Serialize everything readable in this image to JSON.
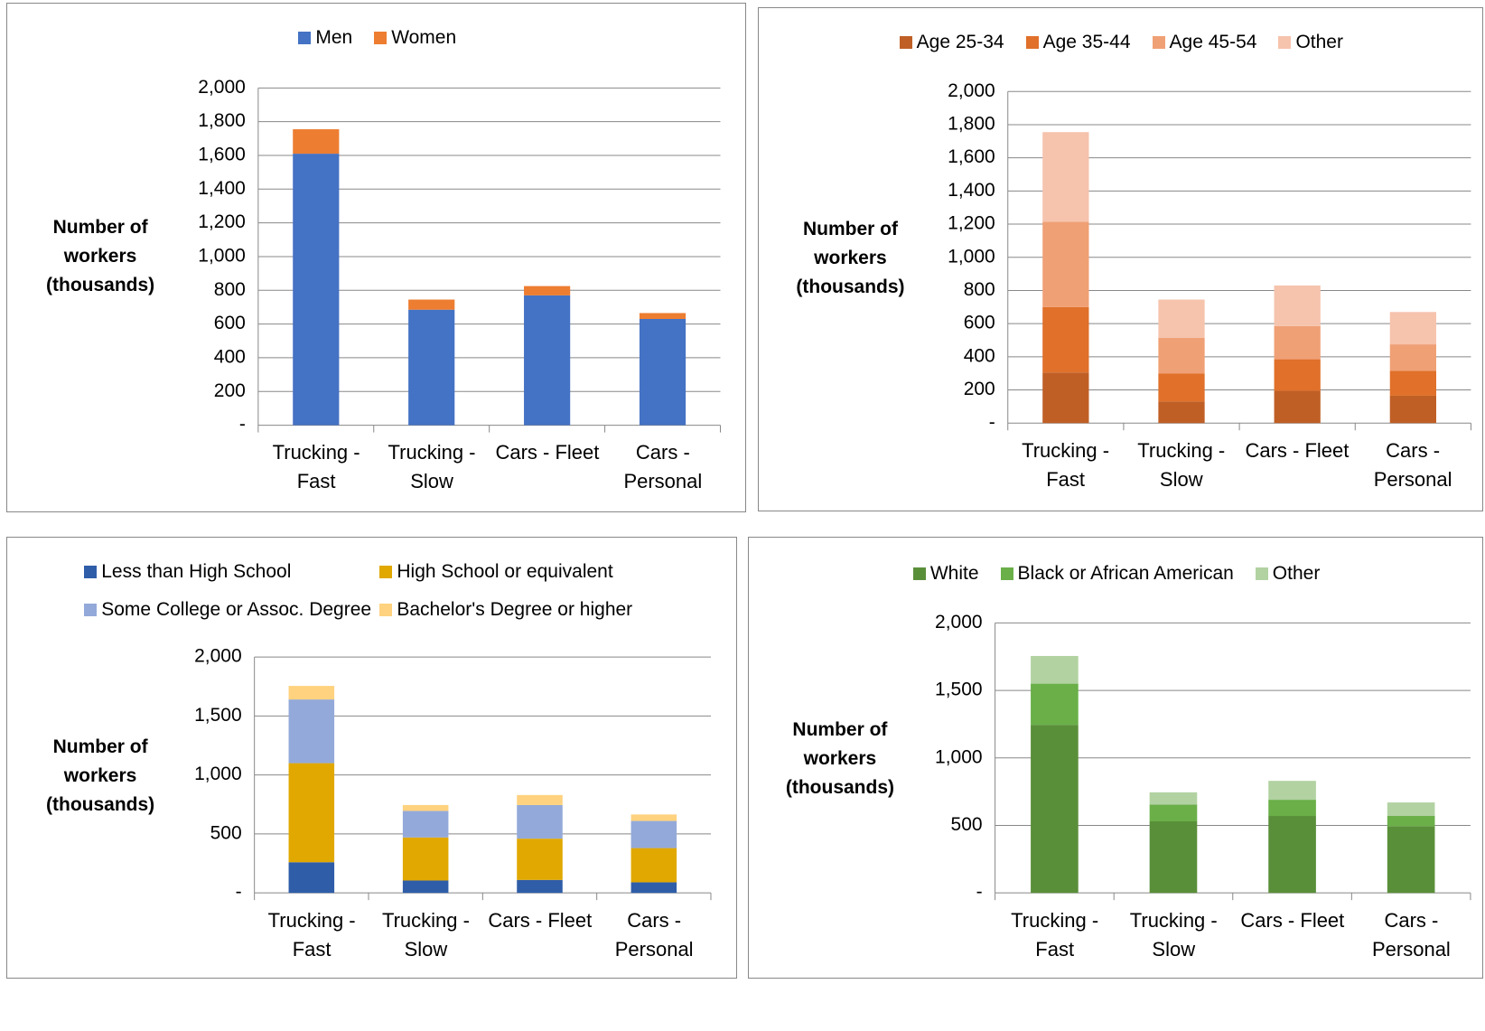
{
  "chart_data": [
    {
      "type": "bar",
      "stacked": true,
      "y_label": "Number of workers (thousands)",
      "categories": [
        "Trucking - Fast",
        "Trucking - Slow",
        "Cars - Fleet",
        "Cars - Personal"
      ],
      "series": [
        {
          "name": "Men",
          "color": "#4472c4",
          "values": [
            1610,
            685,
            770,
            630
          ]
        },
        {
          "name": "Women",
          "color": "#ed7d31",
          "values": [
            145,
            60,
            55,
            35
          ]
        }
      ],
      "ylim": [
        0,
        2000
      ],
      "yticks": [
        {
          "value": 0,
          "label": "-"
        },
        200,
        400,
        600,
        800,
        {
          "value": 1000,
          "label": "1,000"
        },
        {
          "value": 1200,
          "label": "1,200"
        },
        {
          "value": 1400,
          "label": "1,400"
        },
        {
          "value": 1600,
          "label": "1,600"
        },
        {
          "value": 1800,
          "label": "1,800"
        },
        {
          "value": 2000,
          "label": "2,000"
        }
      ],
      "grid": true,
      "legend": "top"
    },
    {
      "type": "bar",
      "stacked": true,
      "y_label": "Number of workers (thousands)",
      "categories": [
        "Trucking - Fast",
        "Trucking - Slow",
        "Cars - Fleet",
        "Cars - Personal"
      ],
      "series": [
        {
          "name": "Age 25-34",
          "color": "#bf5f26",
          "values": [
            305,
            130,
            195,
            165
          ]
        },
        {
          "name": "Age 35-44",
          "color": "#e0702a",
          "values": [
            395,
            170,
            190,
            150
          ]
        },
        {
          "name": "Age 45-54",
          "color": "#f0a075",
          "values": [
            515,
            215,
            200,
            160
          ]
        },
        {
          "name": "Other",
          "color": "#f6c3ad",
          "values": [
            540,
            230,
            245,
            195
          ]
        }
      ],
      "ylim": [
        0,
        2000
      ],
      "yticks": [
        {
          "value": 0,
          "label": "-"
        },
        200,
        400,
        600,
        800,
        {
          "value": 1000,
          "label": "1,000"
        },
        {
          "value": 1200,
          "label": "1,200"
        },
        {
          "value": 1400,
          "label": "1,400"
        },
        {
          "value": 1600,
          "label": "1,600"
        },
        {
          "value": 1800,
          "label": "1,800"
        },
        {
          "value": 2000,
          "label": "2,000"
        }
      ],
      "grid": true,
      "legend": "top"
    },
    {
      "type": "bar",
      "stacked": true,
      "y_label": "Number of workers (thousands)",
      "categories": [
        "Trucking - Fast",
        "Trucking - Slow",
        "Cars - Fleet",
        "Cars - Personal"
      ],
      "series": [
        {
          "name": "Less than High School",
          "color": "#2f5da8",
          "values": [
            260,
            105,
            110,
            90
          ]
        },
        {
          "name": "High School or equivalent",
          "color": "#e0a800",
          "values": [
            840,
            365,
            350,
            290
          ]
        },
        {
          "name": "Some College or Assoc. Degree",
          "color": "#93a9d9",
          "values": [
            540,
            225,
            285,
            230
          ]
        },
        {
          "name": "Bachelor's Degree or higher",
          "color": "#ffd27f",
          "values": [
            115,
            50,
            85,
            55
          ]
        }
      ],
      "ylim": [
        0,
        2000
      ],
      "yticks": [
        {
          "value": 0,
          "label": "-"
        },
        500,
        {
          "value": 1000,
          "label": "1,000"
        },
        {
          "value": 1500,
          "label": "1,500"
        },
        {
          "value": 2000,
          "label": "2,000"
        }
      ],
      "grid": true,
      "legend": "top"
    },
    {
      "type": "bar",
      "stacked": true,
      "y_label": "Number of workers (thousands)",
      "categories": [
        "Trucking - Fast",
        "Trucking - Slow",
        "Cars - Fleet",
        "Cars - Personal"
      ],
      "series": [
        {
          "name": "White",
          "color": "#5a8f3a",
          "values": [
            1245,
            530,
            570,
            495
          ]
        },
        {
          "name": "Black or African American",
          "color": "#6aaf48",
          "values": [
            305,
            125,
            120,
            75
          ]
        },
        {
          "name": "Other",
          "color": "#b2d2a2",
          "values": [
            205,
            90,
            140,
            100
          ]
        }
      ],
      "ylim": [
        0,
        2000
      ],
      "yticks": [
        {
          "value": 0,
          "label": "-"
        },
        500,
        {
          "value": 1000,
          "label": "1,000"
        },
        {
          "value": 1500,
          "label": "1,500"
        },
        {
          "value": 2000,
          "label": "2,000"
        }
      ],
      "grid": true,
      "legend": "top"
    }
  ]
}
